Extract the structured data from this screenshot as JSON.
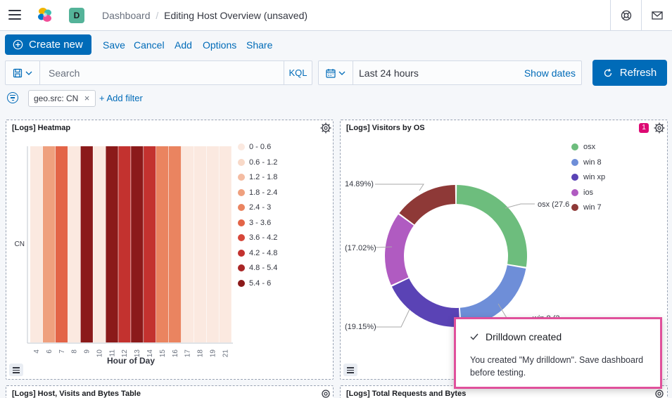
{
  "header": {
    "avatar_letter": "D",
    "breadcrumb_root": "Dashboard",
    "breadcrumb_current": "Editing Host Overview (unsaved)"
  },
  "toolbar": {
    "create_new": "Create new",
    "save": "Save",
    "cancel": "Cancel",
    "add": "Add",
    "options": "Options",
    "share": "Share"
  },
  "query": {
    "placeholder": "Search",
    "language": "KQL"
  },
  "time": {
    "range": "Last 24 hours",
    "show_dates": "Show dates",
    "refresh": "Refresh"
  },
  "filters": {
    "pills": [
      {
        "label": "geo.src: CN"
      }
    ],
    "add_filter": "+ Add filter"
  },
  "panels": {
    "heatmap": {
      "title": "[Logs] Heatmap",
      "xlabel": "Hour of Day",
      "legend": [
        {
          "label": "0 - 0.6",
          "color": "#fbe9e0"
        },
        {
          "label": "0.6 - 1.2",
          "color": "#f8d9c8"
        },
        {
          "label": "1.2 - 1.8",
          "color": "#f4bca2"
        },
        {
          "label": "1.8 - 2.4",
          "color": "#efa07e"
        },
        {
          "label": "2.4 - 3",
          "color": "#ea8460"
        },
        {
          "label": "3 - 3.6",
          "color": "#e36447"
        },
        {
          "label": "3.6 - 4.2",
          "color": "#d6473a"
        },
        {
          "label": "4.2 - 4.8",
          "color": "#c3322f"
        },
        {
          "label": "4.8 - 5.4",
          "color": "#a92626"
        },
        {
          "label": "5.4 - 6",
          "color": "#8b1a1a"
        }
      ]
    },
    "visitors": {
      "title": "[Logs] Visitors by OS",
      "badge": "1",
      "legend": [
        {
          "label": "osx",
          "color": "#6dbd7d"
        },
        {
          "label": "win 8",
          "color": "#6e8ed8"
        },
        {
          "label": "win xp",
          "color": "#5a43b5"
        },
        {
          "label": "ios",
          "color": "#b05bc1"
        },
        {
          "label": "win 7",
          "color": "#8e3937"
        }
      ],
      "slice_labels": {
        "osx": "osx (27.6",
        "win7": "14.89%)",
        "ios": "(17.02%)",
        "winxp": "(19.15%)",
        "win8": "win 8 (2"
      }
    },
    "table": {
      "title": "[Logs] Host, Visits and Bytes Table"
    },
    "requests": {
      "title": "[Logs] Total Requests and Bytes"
    }
  },
  "chart_data": [
    {
      "type": "heatmap",
      "title": "[Logs] Heatmap",
      "xlabel": "Hour of Day",
      "ylabel": "",
      "y_categories": [
        "CN"
      ],
      "x_categories": [
        "4",
        "6",
        "7",
        "8",
        "9",
        "10",
        "11",
        "12",
        "13",
        "14",
        "15",
        "16",
        "17",
        "18",
        "19",
        "21"
      ],
      "values": [
        0.3,
        2.1,
        3.3,
        0.3,
        5.7,
        0.3,
        5.7,
        4.5,
        5.7,
        4.5,
        2.7,
        2.7,
        0.3,
        0.3,
        0.3,
        0.3
      ]
    },
    {
      "type": "pie",
      "title": "[Logs] Visitors by OS",
      "labels": [
        "osx",
        "win 8",
        "win xp",
        "ios",
        "win 7"
      ],
      "values": [
        27.66,
        21.28,
        19.15,
        17.02,
        14.89
      ],
      "donut": true,
      "legend": "top-right"
    }
  ]
}
